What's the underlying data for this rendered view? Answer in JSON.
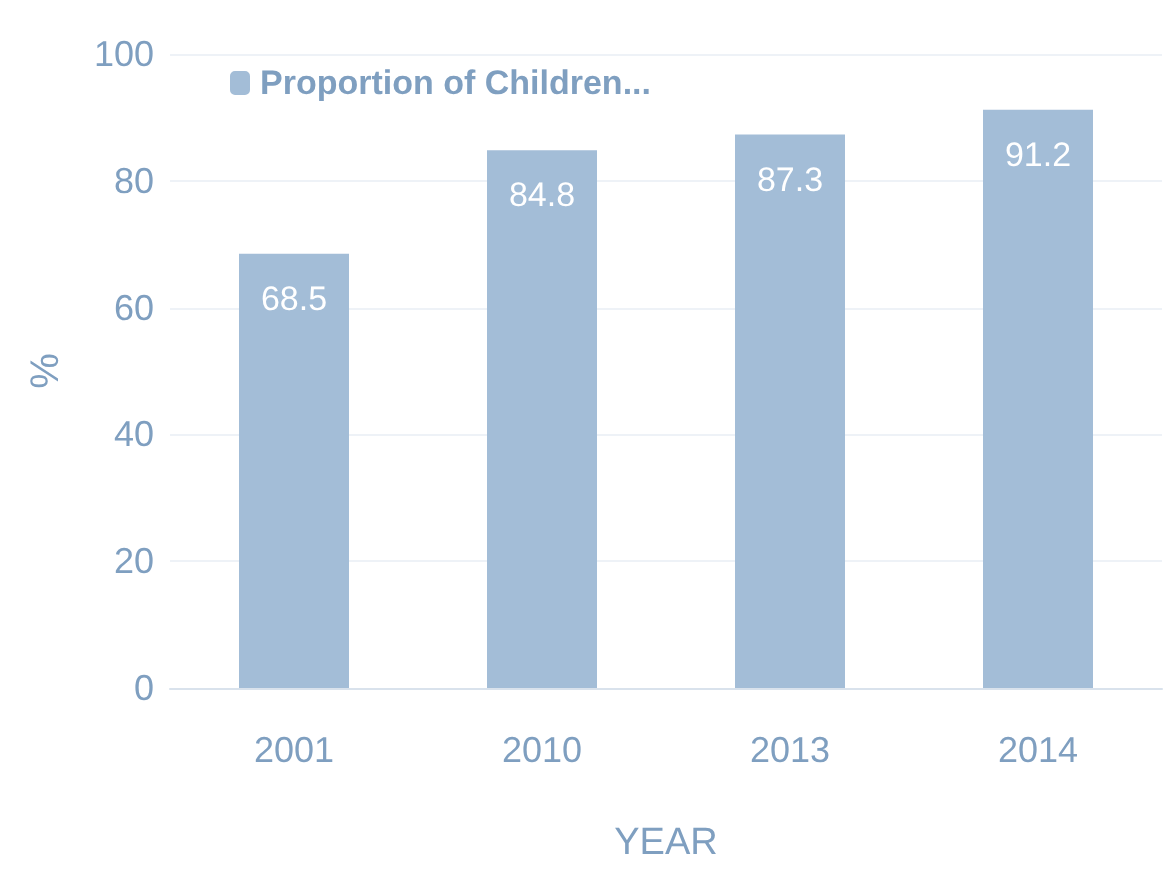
{
  "chart_data": {
    "type": "bar",
    "xlabel": "YEAR",
    "ylabel": "%",
    "categories": [
      "2001",
      "2010",
      "2013",
      "2014"
    ],
    "series": [
      {
        "name": "Proportion of Children...",
        "color": "#a3bdd7",
        "values": [
          68.5,
          84.8,
          87.3,
          91.2
        ]
      }
    ],
    "ylim": [
      0,
      100
    ],
    "yticks": [
      0,
      20,
      40,
      60,
      80,
      100
    ],
    "grid": "y",
    "legend": "top left",
    "data_labels": true
  }
}
